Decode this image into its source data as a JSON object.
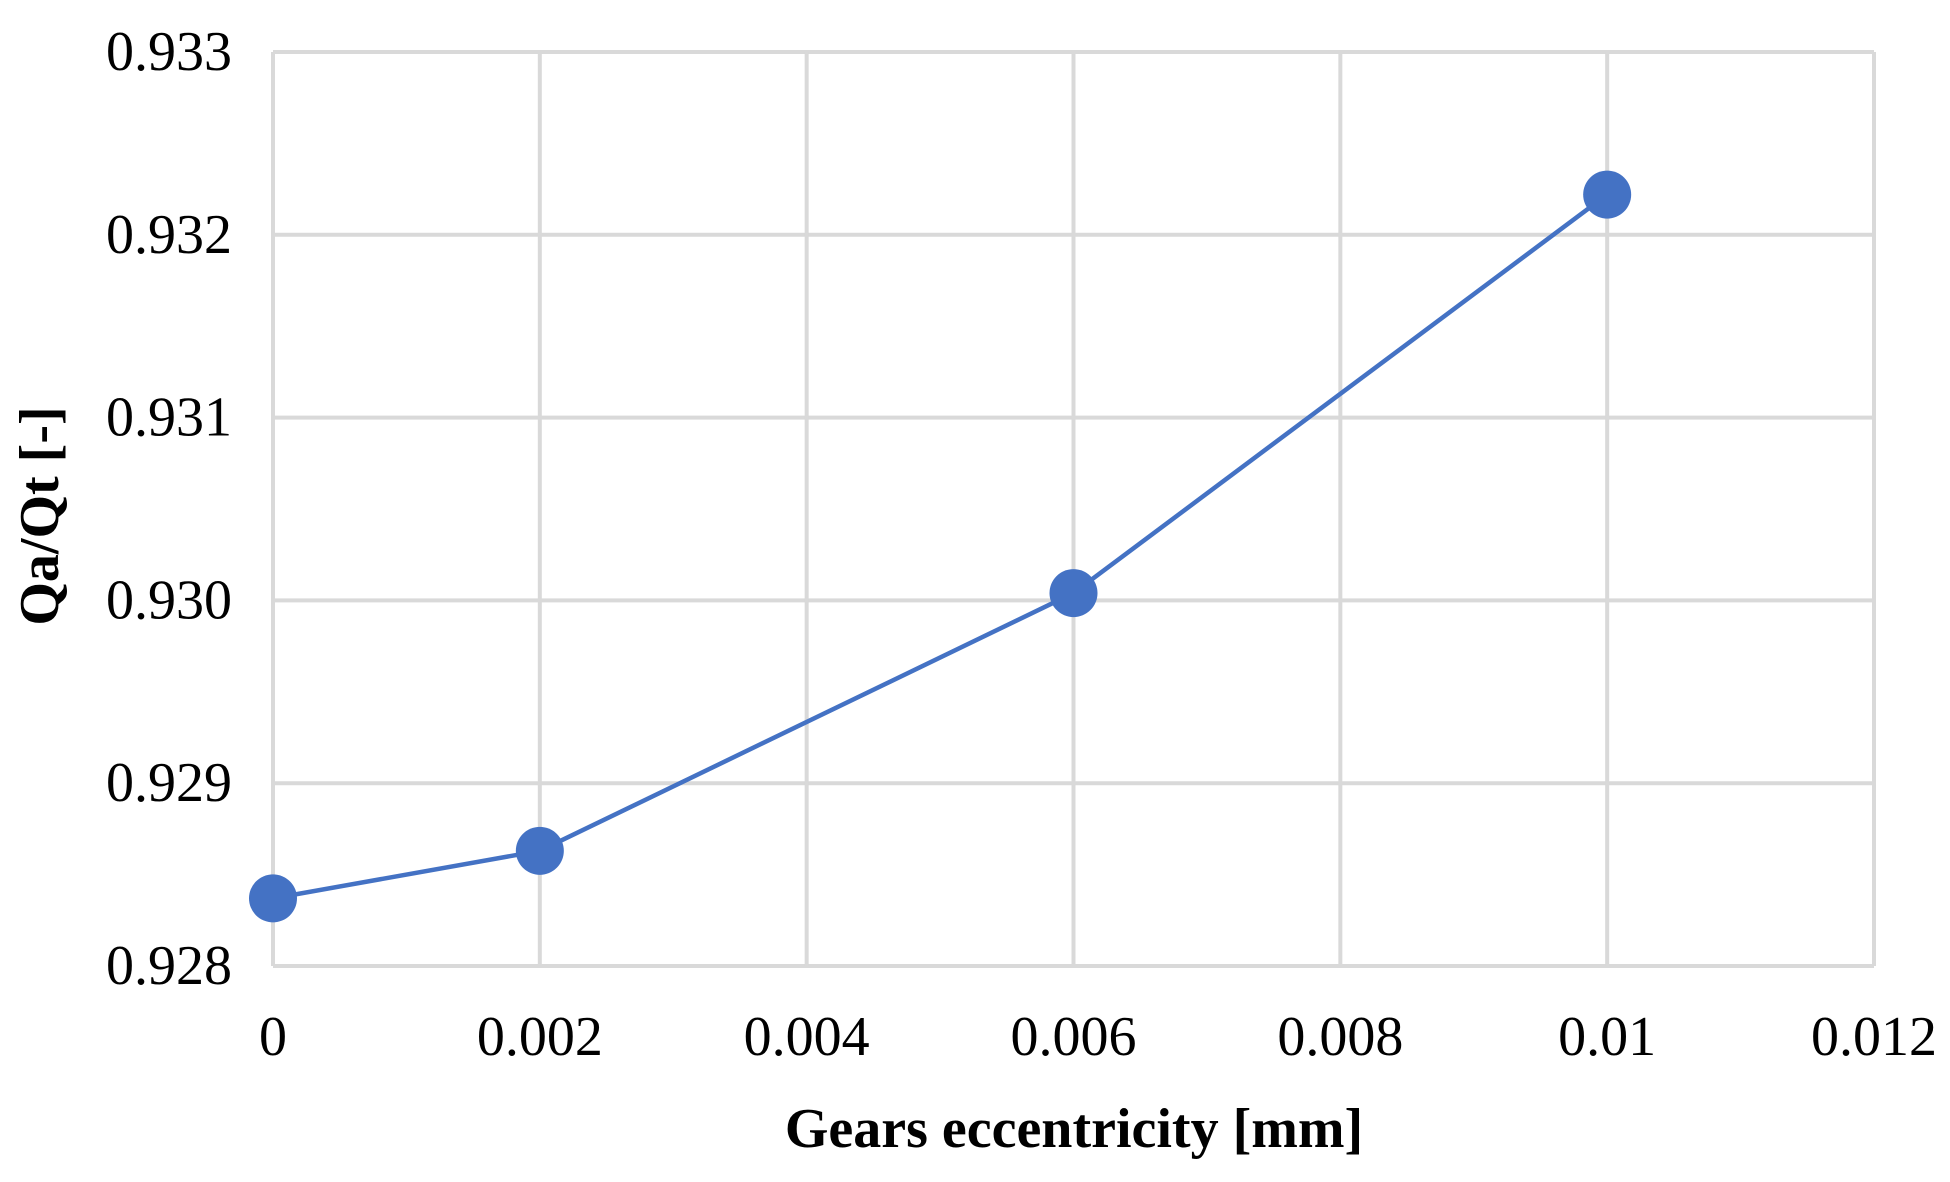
{
  "chart_data": {
    "type": "line",
    "title": "",
    "xlabel": "Gears eccentricity [mm]",
    "ylabel": "Qa/Qt [-]",
    "xlim": [
      0,
      0.012
    ],
    "ylim": [
      0.928,
      0.933
    ],
    "x_ticks": [
      "0",
      "0.002",
      "0.004",
      "0.006",
      "0.008",
      "0.01",
      "0.012"
    ],
    "y_ticks": [
      "0.928",
      "0.929",
      "0.930",
      "0.931",
      "0.932",
      "0.933"
    ],
    "grid": true,
    "legend": "none",
    "series": [
      {
        "color": "#4472c4",
        "marker": "circle",
        "points": [
          {
            "x": 0,
            "y": 0.92837
          },
          {
            "x": 0.002,
            "y": 0.92863
          },
          {
            "x": 0.006,
            "y": 0.93004
          },
          {
            "x": 0.01,
            "y": 0.93222
          }
        ]
      }
    ]
  }
}
